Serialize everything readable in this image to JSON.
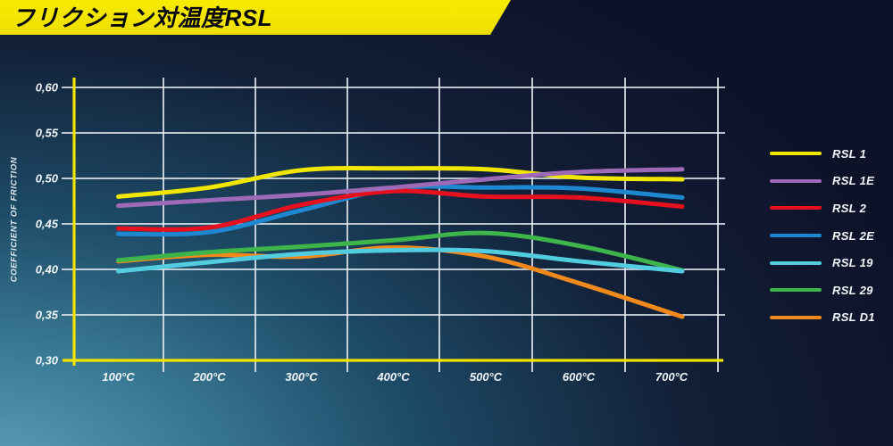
{
  "title": "フリクション対温度RSL",
  "chart_data": {
    "type": "line",
    "title": "フリクション対温度RSL",
    "xlabel": "",
    "ylabel": "COEFFICIENT OF FRICTION",
    "categories": [
      "100°C",
      "200°C",
      "300°C",
      "400°C",
      "500°C",
      "600°C",
      "700°C"
    ],
    "ylim": [
      0.3,
      0.6
    ],
    "y_ticks": [
      {
        "label": "0,60",
        "value": 0.6
      },
      {
        "label": "0,55",
        "value": 0.55
      },
      {
        "label": "0,50",
        "value": 0.5
      },
      {
        "label": "0,45",
        "value": 0.45
      },
      {
        "label": "0,40",
        "value": 0.4
      },
      {
        "label": "0,35",
        "value": 0.35
      },
      {
        "label": "0,30",
        "value": 0.3
      }
    ],
    "grid": true,
    "legend_position": "right",
    "colors": {
      "axis": "#f0e400",
      "grid": "#e6ecf2",
      "tick_text": "#f2f6fa",
      "title_bar": "#f3e600",
      "background_dark": "#0e1229",
      "background_glow": "#5fa3b8"
    },
    "series": [
      {
        "name": "RSL 1",
        "color": "#f0e600",
        "values": [
          0.48,
          0.49,
          0.509,
          0.511,
          0.51,
          0.501,
          0.499
        ]
      },
      {
        "name": "RSL 1E",
        "color": "#9e6ab8",
        "values": [
          0.47,
          0.476,
          0.482,
          0.49,
          0.499,
          0.507,
          0.51
        ]
      },
      {
        "name": "RSL 2",
        "color": "#e6101e",
        "values": [
          0.445,
          0.446,
          0.471,
          0.486,
          0.48,
          0.479,
          0.469
        ]
      },
      {
        "name": "RSL 2E",
        "color": "#1f87d0",
        "values": [
          0.439,
          0.441,
          0.465,
          0.489,
          0.49,
          0.489,
          0.479
        ]
      },
      {
        "name": "RSL 19",
        "color": "#52cde0",
        "values": [
          0.398,
          0.408,
          0.417,
          0.421,
          0.42,
          0.409,
          0.398
        ]
      },
      {
        "name": "RSL 29",
        "color": "#3db54b",
        "values": [
          0.41,
          0.419,
          0.425,
          0.432,
          0.44,
          0.426,
          0.399
        ]
      },
      {
        "name": "RSL D1",
        "color": "#f08a1c",
        "values": [
          0.409,
          0.416,
          0.414,
          0.424,
          0.414,
          0.385,
          0.348
        ]
      }
    ]
  }
}
